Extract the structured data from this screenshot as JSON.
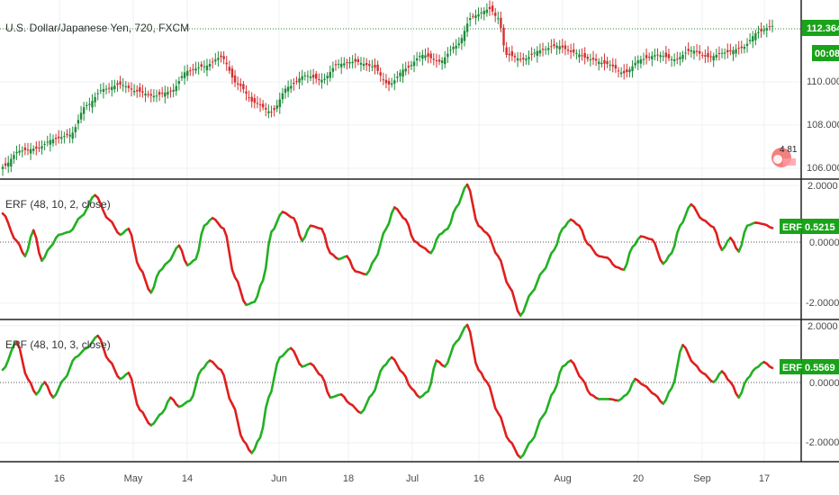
{
  "colors": {
    "up": "#1e8c3a",
    "down": "#d32f2f",
    "erf_up": "#22b022",
    "erf_down": "#e01e1e",
    "tag_green": "#1aa31a",
    "grid": "#eef0f3",
    "border": "#222222"
  },
  "main": {
    "title": "U.S. Dollar/Japanese Yen, 720, FXCM",
    "price_tag": "112.364",
    "time_tag": "00:08",
    "y_labels": [
      "110.000",
      "108.000",
      "106.000"
    ],
    "badge_text": "4 81",
    "badge_icon": "tradingview-logo-icon"
  },
  "erf1": {
    "title": "ERF (48, 10, 2, close)",
    "tag_label": "ERF",
    "tag_value": "0.5215",
    "y_labels": [
      "2.0000",
      "0.0000",
      "-2.0000"
    ]
  },
  "erf2": {
    "title": "ERF (48, 10, 3, close)",
    "tag_label": "ERF",
    "tag_value": "0.5569",
    "y_labels": [
      "2.0000",
      "0.0000",
      "-2.0000"
    ]
  },
  "x_axis": {
    "labels": [
      "16",
      "May",
      "14",
      "Jun",
      "18",
      "Jul",
      "16",
      "Aug",
      "20",
      "Sep",
      "17"
    ]
  },
  "chart_data": [
    {
      "type": "candlestick",
      "title": "U.S. Dollar/Japanese Yen, 720, FXCM",
      "ylim": [
        105.7,
        113.5
      ],
      "x_tick_labels": [
        "16",
        "May",
        "14",
        "Jun",
        "18",
        "Jul",
        "16",
        "Aug",
        "20",
        "Sep",
        "17"
      ],
      "y_tick_labels": [
        "110.000",
        "108.000",
        "106.000"
      ],
      "last_price": 112.364,
      "anchor_closes": [
        [
          0,
          106.2
        ],
        [
          6,
          106.9
        ],
        [
          12,
          107.0
        ],
        [
          18,
          107.4
        ],
        [
          24,
          107.6
        ],
        [
          30,
          108.9
        ],
        [
          36,
          109.6
        ],
        [
          42,
          109.8
        ],
        [
          48,
          109.5
        ],
        [
          54,
          109.3
        ],
        [
          60,
          109.5
        ],
        [
          66,
          110.4
        ],
        [
          72,
          110.6
        ],
        [
          78,
          111.0
        ],
        [
          84,
          109.8
        ],
        [
          90,
          109.0
        ],
        [
          96,
          108.6
        ],
        [
          102,
          109.7
        ],
        [
          108,
          110.2
        ],
        [
          114,
          110.0
        ],
        [
          120,
          110.7
        ],
        [
          126,
          110.8
        ],
        [
          132,
          110.6
        ],
        [
          138,
          109.8
        ],
        [
          144,
          110.5
        ],
        [
          150,
          111.1
        ],
        [
          156,
          110.8
        ],
        [
          162,
          111.5
        ],
        [
          168,
          112.8
        ],
        [
          174,
          113.1
        ],
        [
          177,
          112.7
        ],
        [
          180,
          111.1
        ],
        [
          186,
          110.9
        ],
        [
          192,
          111.3
        ],
        [
          198,
          111.5
        ],
        [
          204,
          111.2
        ],
        [
          210,
          110.9
        ],
        [
          216,
          110.7
        ],
        [
          222,
          110.3
        ],
        [
          228,
          110.9
        ],
        [
          234,
          111.1
        ],
        [
          240,
          110.9
        ],
        [
          246,
          111.3
        ],
        [
          252,
          111.0
        ],
        [
          258,
          111.2
        ],
        [
          264,
          111.4
        ],
        [
          270,
          112.1
        ],
        [
          275,
          112.364
        ]
      ]
    },
    {
      "type": "line",
      "title": "ERF (48, 10, 2, close)",
      "ylim": [
        -2.45,
        2.1
      ],
      "y_tick_labels": [
        "2.0000",
        "0.0000",
        "-2.0000"
      ],
      "color_rule": "green when rising, red when falling",
      "last_value": 0.5215,
      "anchors": [
        [
          0,
          1.0
        ],
        [
          5,
          0.1
        ],
        [
          8,
          -0.4
        ],
        [
          11,
          0.45
        ],
        [
          14,
          -0.55
        ],
        [
          17,
          -0.1
        ],
        [
          20,
          0.3
        ],
        [
          24,
          0.4
        ],
        [
          28,
          0.9
        ],
        [
          33,
          1.6
        ],
        [
          38,
          0.8
        ],
        [
          42,
          0.3
        ],
        [
          45,
          0.5
        ],
        [
          49,
          -0.8
        ],
        [
          53,
          -1.6
        ],
        [
          56,
          -0.9
        ],
        [
          59,
          -0.6
        ],
        [
          63,
          -0.05
        ],
        [
          66,
          -0.7
        ],
        [
          69,
          -0.5
        ],
        [
          72,
          0.6
        ],
        [
          75,
          0.85
        ],
        [
          79,
          0.5
        ],
        [
          83,
          -1.1
        ],
        [
          87,
          -2.0
        ],
        [
          90,
          -1.9
        ],
        [
          93,
          -1.2
        ],
        [
          96,
          0.4
        ],
        [
          100,
          1.05
        ],
        [
          104,
          0.85
        ],
        [
          107,
          0.1
        ],
        [
          110,
          0.6
        ],
        [
          114,
          0.5
        ],
        [
          117,
          -0.3
        ],
        [
          120,
          -0.5
        ],
        [
          123,
          -0.4
        ],
        [
          126,
          -0.9
        ],
        [
          130,
          -1.0
        ],
        [
          133,
          -0.5
        ],
        [
          137,
          0.5
        ],
        [
          140,
          1.2
        ],
        [
          144,
          0.8
        ],
        [
          147,
          0.1
        ],
        [
          150,
          -0.1
        ],
        [
          153,
          -0.3
        ],
        [
          156,
          0.3
        ],
        [
          159,
          0.5
        ],
        [
          162,
          1.2
        ],
        [
          166,
          1.95
        ],
        [
          170,
          0.6
        ],
        [
          173,
          0.35
        ],
        [
          177,
          -0.4
        ],
        [
          181,
          -1.4
        ],
        [
          185,
          -2.35
        ],
        [
          189,
          -1.6
        ],
        [
          193,
          -0.9
        ],
        [
          197,
          -0.2
        ],
        [
          200,
          0.5
        ],
        [
          203,
          0.8
        ],
        [
          206,
          0.6
        ],
        [
          209,
          0.0
        ],
        [
          213,
          -0.4
        ],
        [
          216,
          -0.45
        ],
        [
          219,
          -0.75
        ],
        [
          222,
          -0.85
        ],
        [
          225,
          -0.1
        ],
        [
          228,
          0.25
        ],
        [
          232,
          0.15
        ],
        [
          236,
          -0.65
        ],
        [
          239,
          -0.3
        ],
        [
          242,
          0.6
        ],
        [
          246,
          1.3
        ],
        [
          250,
          0.8
        ],
        [
          254,
          0.55
        ],
        [
          257,
          -0.2
        ],
        [
          260,
          0.2
        ],
        [
          263,
          -0.25
        ],
        [
          266,
          0.6
        ],
        [
          269,
          0.7
        ],
        [
          272,
          0.65
        ],
        [
          275,
          0.5215
        ]
      ]
    },
    {
      "type": "line",
      "title": "ERF (48, 10, 3, close)",
      "ylim": [
        -2.45,
        2.1
      ],
      "y_tick_labels": [
        "2.0000",
        "0.0000",
        "-2.0000"
      ],
      "color_rule": "green when rising, red when falling",
      "last_value": 0.5569,
      "anchors": [
        [
          0,
          0.5
        ],
        [
          5,
          1.4
        ],
        [
          9,
          0.2
        ],
        [
          12,
          -0.3
        ],
        [
          15,
          0.1
        ],
        [
          18,
          -0.4
        ],
        [
          22,
          0.2
        ],
        [
          26,
          0.9
        ],
        [
          30,
          1.2
        ],
        [
          34,
          1.6
        ],
        [
          38,
          0.8
        ],
        [
          42,
          0.2
        ],
        [
          45,
          0.4
        ],
        [
          49,
          -0.8
        ],
        [
          53,
          -1.3
        ],
        [
          57,
          -0.9
        ],
        [
          60,
          -0.4
        ],
        [
          63,
          -0.7
        ],
        [
          67,
          -0.5
        ],
        [
          71,
          0.5
        ],
        [
          74,
          0.8
        ],
        [
          78,
          0.5
        ],
        [
          82,
          -0.6
        ],
        [
          86,
          -1.8
        ],
        [
          89,
          -2.2
        ],
        [
          92,
          -1.7
        ],
        [
          95,
          -0.4
        ],
        [
          99,
          0.9
        ],
        [
          103,
          1.2
        ],
        [
          107,
          0.6
        ],
        [
          110,
          0.7
        ],
        [
          114,
          0.3
        ],
        [
          117,
          -0.4
        ],
        [
          121,
          -0.3
        ],
        [
          124,
          -0.6
        ],
        [
          128,
          -0.9
        ],
        [
          132,
          -0.3
        ],
        [
          136,
          0.6
        ],
        [
          139,
          0.9
        ],
        [
          143,
          0.4
        ],
        [
          146,
          -0.1
        ],
        [
          149,
          -0.4
        ],
        [
          152,
          -0.2
        ],
        [
          155,
          0.8
        ],
        [
          158,
          0.6
        ],
        [
          162,
          1.4
        ],
        [
          166,
          1.95
        ],
        [
          170,
          0.5
        ],
        [
          173,
          0.1
        ],
        [
          177,
          -0.9
        ],
        [
          181,
          -1.8
        ],
        [
          185,
          -2.35
        ],
        [
          189,
          -1.8
        ],
        [
          193,
          -1.0
        ],
        [
          197,
          -0.2
        ],
        [
          200,
          0.6
        ],
        [
          203,
          0.8
        ],
        [
          207,
          0.2
        ],
        [
          210,
          -0.3
        ],
        [
          213,
          -0.45
        ],
        [
          217,
          -0.45
        ],
        [
          220,
          -0.5
        ],
        [
          223,
          -0.3
        ],
        [
          226,
          0.2
        ],
        [
          229,
          0.0
        ],
        [
          233,
          -0.3
        ],
        [
          236,
          -0.6
        ],
        [
          239,
          -0.1
        ],
        [
          243,
          1.3
        ],
        [
          247,
          0.7
        ],
        [
          250,
          0.4
        ],
        [
          254,
          0.1
        ],
        [
          257,
          0.45
        ],
        [
          260,
          0.1
        ],
        [
          263,
          -0.4
        ],
        [
          266,
          0.2
        ],
        [
          269,
          0.55
        ],
        [
          272,
          0.75
        ],
        [
          275,
          0.5569
        ]
      ]
    }
  ]
}
